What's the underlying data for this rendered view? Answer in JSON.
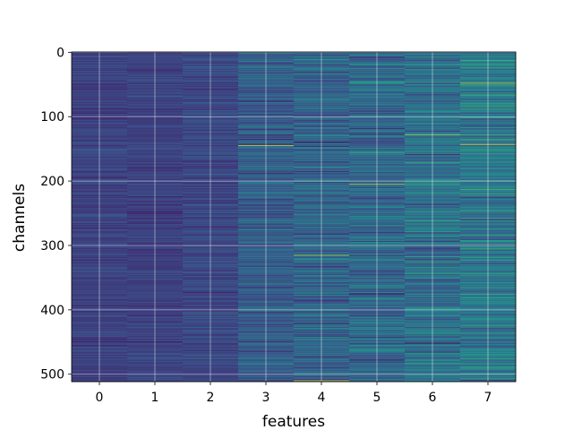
{
  "chart_data": {
    "type": "heatmap",
    "title": "",
    "xlabel": "features",
    "ylabel": "channels",
    "x_categories": [
      "0",
      "1",
      "2",
      "3",
      "4",
      "5",
      "6",
      "7"
    ],
    "y_ticks": [
      0,
      100,
      200,
      300,
      400,
      500
    ],
    "y_range": [
      0,
      511
    ],
    "n_rows": 512,
    "y_inverted": true,
    "grid": true,
    "colormap": "viridis",
    "colormap_stops": [
      "#440154",
      "#3b528b",
      "#21918c",
      "#5ec962",
      "#fde725"
    ],
    "column_profiles": [
      {
        "feature": "0",
        "mean": 0.2,
        "spread": 0.08
      },
      {
        "feature": "1",
        "mean": 0.2,
        "spread": 0.08
      },
      {
        "feature": "2",
        "mean": 0.22,
        "spread": 0.1
      },
      {
        "feature": "3",
        "mean": 0.3,
        "spread": 0.16
      },
      {
        "feature": "4",
        "mean": 0.32,
        "spread": 0.18
      },
      {
        "feature": "5",
        "mean": 0.34,
        "spread": 0.19
      },
      {
        "feature": "6",
        "mean": 0.38,
        "spread": 0.2
      },
      {
        "feature": "7",
        "mean": 0.4,
        "spread": 0.21
      }
    ],
    "highlights": [
      {
        "feature": "3",
        "channel": 145,
        "value": 0.95
      },
      {
        "feature": "7",
        "channel": 143,
        "value": 0.98
      },
      {
        "feature": "4",
        "channel": 510,
        "value": 0.95
      },
      {
        "feature": "4",
        "channel": 315,
        "value": 0.85
      },
      {
        "feature": "5",
        "channel": 205,
        "value": 0.88
      },
      {
        "feature": "7",
        "channel": 48,
        "value": 0.88
      },
      {
        "feature": "6",
        "channel": 128,
        "value": 0.85
      },
      {
        "feature": "5",
        "channel": 375,
        "value": 0.02
      },
      {
        "feature": "6",
        "channel": 452,
        "value": 0.02
      },
      {
        "feature": "4",
        "channel": 140,
        "value": 0.05
      },
      {
        "feature": "1",
        "channel": 450,
        "value": 0.02
      },
      {
        "feature": "0",
        "channel": 450,
        "value": 0.03
      }
    ]
  }
}
